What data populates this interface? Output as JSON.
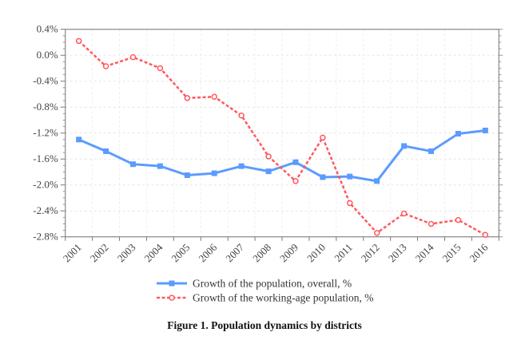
{
  "chart_data": {
    "type": "line",
    "title": "",
    "caption": "Figure 1. Population dynamics by districts",
    "xlabel": "",
    "ylabel": "",
    "categories": [
      "2001",
      "2002",
      "2003",
      "2004",
      "2005",
      "2006",
      "2007",
      "2008",
      "2009",
      "2010",
      "2011",
      "2012",
      "2013",
      "2014",
      "2015",
      "2016"
    ],
    "yticks": [
      "0.4%",
      "0.0%",
      "-0.4%",
      "-0.8%",
      "-1.2%",
      "-1.6%",
      "-2.0%",
      "-2.4%",
      "-2.8%"
    ],
    "ylim": [
      -2.8,
      0.4
    ],
    "grid": true,
    "legend_placement": "bottom",
    "series": [
      {
        "name": "Growth of the population, overall, %",
        "color": "#5b9bff",
        "style": "solid",
        "marker": "square",
        "values": [
          -1.3,
          -1.48,
          -1.68,
          -1.71,
          -1.85,
          -1.82,
          -1.71,
          -1.79,
          -1.65,
          -1.88,
          -1.87,
          -1.94,
          -1.4,
          -1.48,
          -1.21,
          -1.16
        ]
      },
      {
        "name": "Growth of the working-age population, %",
        "color": "#ff5a5f",
        "style": "dashed",
        "marker": "circle-open",
        "values": [
          0.22,
          -0.17,
          -0.03,
          -0.2,
          -0.66,
          -0.64,
          -0.93,
          -1.56,
          -1.94,
          -1.27,
          -2.28,
          -2.74,
          -2.44,
          -2.6,
          -2.54,
          -2.77
        ]
      }
    ]
  }
}
